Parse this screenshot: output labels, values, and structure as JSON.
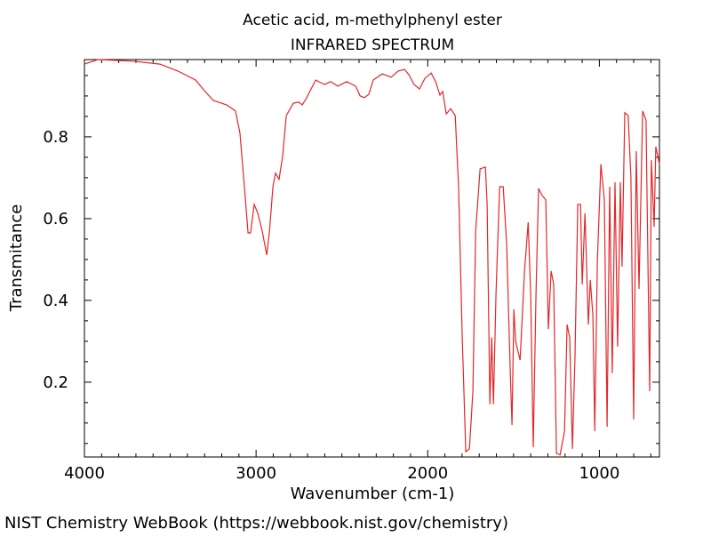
{
  "chart_data": {
    "type": "line",
    "title": "Acetic acid, m-methylphenyl ester",
    "subtitle": "INFRARED SPECTRUM",
    "x_label": "Wavenumber (cm-1)",
    "y_label": "Transmitance",
    "footer": "NIST Chemistry WebBook (https://webbook.nist.gov/chemistry)",
    "xlim": [
      4000,
      650
    ],
    "ylim": [
      0.017,
      0.989
    ],
    "xticks": [
      4000,
      3000,
      2000,
      1000
    ],
    "yticks": [
      0.2,
      0.4,
      0.6,
      0.8
    ],
    "xminorticks": [
      3900,
      3800,
      3700,
      3600,
      3500,
      3400,
      3300,
      3200,
      3100,
      2900,
      2800,
      2700,
      2600,
      2500,
      2400,
      2300,
      2200,
      2100,
      1900,
      1800,
      1700,
      1600,
      1500,
      1400,
      1300,
      1200,
      1100,
      900,
      800,
      700
    ],
    "yminorticks": [
      0.05,
      0.1,
      0.15,
      0.25,
      0.3,
      0.35,
      0.45,
      0.5,
      0.55,
      0.65,
      0.7,
      0.75,
      0.85,
      0.9,
      0.95
    ],
    "series": [
      {
        "color": "#e3262a",
        "x": [
          4000,
          3922,
          3715,
          3560,
          3456,
          3353,
          3301,
          3249,
          3171,
          3120,
          3094,
          3068,
          3047,
          3032,
          3011,
          2990,
          2964,
          2938,
          2922,
          2902,
          2887,
          2866,
          2845,
          2824,
          2783,
          2752,
          2731,
          2705,
          2653,
          2601,
          2565,
          2524,
          2472,
          2420,
          2394,
          2369,
          2343,
          2317,
          2265,
          2213,
          2172,
          2135,
          2110,
          2079,
          2048,
          2017,
          1980,
          1954,
          1929,
          1913,
          1892,
          1866,
          1840,
          1820,
          1799,
          1778,
          1757,
          1737,
          1721,
          1695,
          1664,
          1654,
          1638,
          1627,
          1617,
          1602,
          1581,
          1560,
          1540,
          1519,
          1509,
          1498,
          1488,
          1462,
          1436,
          1415,
          1400,
          1385,
          1369,
          1354,
          1333,
          1312,
          1297,
          1281,
          1266,
          1250,
          1229,
          1203,
          1188,
          1173,
          1157,
          1142,
          1126,
          1110,
          1100,
          1084,
          1064,
          1053,
          1038,
          1027,
          1012,
          991,
          971,
          955,
          940,
          925,
          909,
          894,
          878,
          868,
          852,
          832,
          816,
          800,
          785,
          769,
          748,
          728,
          707,
          697,
          681,
          671,
          650
        ],
        "values": [
          0.978,
          0.989,
          0.985,
          0.978,
          0.961,
          0.939,
          0.913,
          0.889,
          0.878,
          0.863,
          0.809,
          0.678,
          0.565,
          0.565,
          0.635,
          0.613,
          0.569,
          0.511,
          0.569,
          0.678,
          0.711,
          0.696,
          0.754,
          0.852,
          0.882,
          0.885,
          0.878,
          0.896,
          0.939,
          0.928,
          0.935,
          0.924,
          0.935,
          0.924,
          0.9,
          0.896,
          0.904,
          0.939,
          0.954,
          0.946,
          0.961,
          0.965,
          0.952,
          0.928,
          0.917,
          0.943,
          0.956,
          0.935,
          0.902,
          0.911,
          0.856,
          0.869,
          0.852,
          0.678,
          0.309,
          0.03,
          0.037,
          0.178,
          0.569,
          0.722,
          0.726,
          0.635,
          0.146,
          0.309,
          0.146,
          0.417,
          0.678,
          0.678,
          0.537,
          0.222,
          0.095,
          0.378,
          0.3,
          0.254,
          0.472,
          0.591,
          0.417,
          0.041,
          0.417,
          0.674,
          0.656,
          0.646,
          0.33,
          0.472,
          0.439,
          0.026,
          0.022,
          0.08,
          0.341,
          0.309,
          0.037,
          0.265,
          0.635,
          0.635,
          0.439,
          0.613,
          0.341,
          0.45,
          0.363,
          0.08,
          0.493,
          0.733,
          0.646,
          0.091,
          0.678,
          0.222,
          0.689,
          0.287,
          0.689,
          0.483,
          0.859,
          0.852,
          0.7,
          0.109,
          0.765,
          0.428,
          0.863,
          0.841,
          0.178,
          0.743,
          0.58,
          0.776,
          0.733
        ]
      }
    ]
  }
}
